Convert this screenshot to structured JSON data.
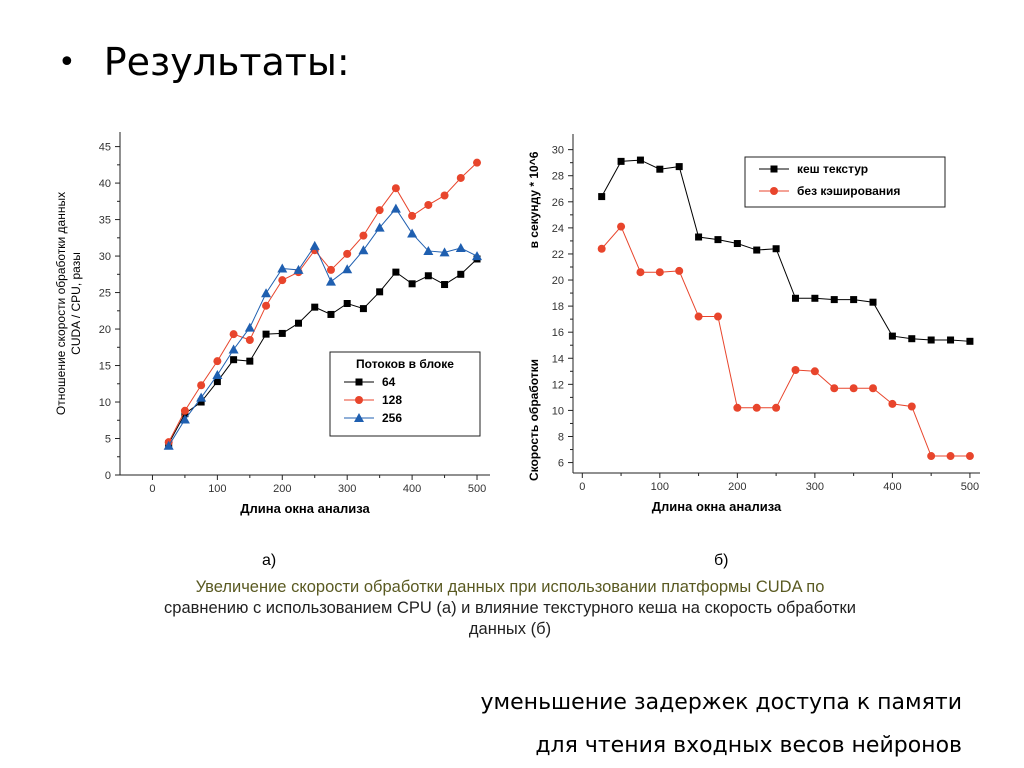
{
  "slide": {
    "bullet": "•",
    "title": "Результаты:",
    "label_a": "а)",
    "label_b": "б)",
    "caption_line1": "Увеличение скорости обработки данных при использовании платформы CUDA по",
    "caption_line2": "сравнению с использованием CPU (а) и влияние текстурного кеша на скорость обработки",
    "caption_line3": "данных (б)",
    "footer_line1": "уменьшение задержек доступа к памяти",
    "footer_line2": "для чтения входных весов нейронов"
  },
  "chart_data": [
    {
      "type": "line",
      "xlabel": "Длина окна анализа",
      "ylabel_line1": "Отношение скорости обработки данных",
      "ylabel_line2": "CUDA / CPU, разы",
      "xlim": [
        -50,
        520
      ],
      "ylim": [
        0,
        47
      ],
      "xticks": [
        0,
        100,
        200,
        300,
        400,
        500
      ],
      "yticks": [
        0,
        5,
        10,
        15,
        20,
        25,
        30,
        35,
        40,
        45
      ],
      "legend_title": "Потоков в блоке",
      "legend_position": "lower-right",
      "x": [
        25,
        50,
        75,
        100,
        125,
        150,
        175,
        200,
        225,
        250,
        275,
        300,
        325,
        350,
        375,
        400,
        425,
        450,
        475,
        500
      ],
      "series": [
        {
          "name": "64",
          "color": "#000000",
          "marker": "square",
          "values": [
            4.3,
            8.4,
            10.0,
            12.8,
            15.8,
            15.6,
            19.3,
            19.4,
            20.8,
            23.0,
            22.0,
            23.5,
            22.8,
            25.1,
            27.8,
            26.2,
            27.3,
            26.1,
            27.5,
            29.6
          ]
        },
        {
          "name": "128",
          "color": "#e8452c",
          "marker": "circle",
          "values": [
            4.5,
            8.8,
            12.3,
            15.6,
            19.3,
            18.5,
            23.2,
            26.7,
            27.8,
            30.8,
            28.1,
            30.3,
            32.8,
            36.3,
            39.3,
            35.5,
            37.0,
            38.3,
            40.7,
            42.8
          ]
        },
        {
          "name": "256",
          "color": "#1f5fb0",
          "marker": "triangle",
          "values": [
            4.0,
            7.6,
            10.6,
            13.7,
            17.2,
            20.2,
            24.9,
            28.3,
            28.1,
            31.4,
            26.5,
            28.2,
            30.8,
            33.9,
            36.5,
            33.1,
            30.7,
            30.5,
            31.1,
            30.0
          ]
        }
      ]
    },
    {
      "type": "line",
      "xlabel": "Длина окна анализа",
      "ylabel_line1": "Скорость обработки",
      "ylabel_line2": "в секунду * 10^6",
      "xlim": [
        -12,
        513
      ],
      "ylim": [
        5.2,
        31.2
      ],
      "xticks": [
        0,
        100,
        200,
        300,
        400,
        500
      ],
      "yticks": [
        6,
        8,
        10,
        12,
        14,
        16,
        18,
        20,
        22,
        24,
        26,
        28,
        30
      ],
      "legend_position": "top-right",
      "x": [
        25,
        50,
        75,
        100,
        125,
        150,
        175,
        200,
        225,
        250,
        275,
        300,
        325,
        350,
        375,
        400,
        425,
        450,
        475,
        500
      ],
      "series": [
        {
          "name": "кеш текстур",
          "color": "#000000",
          "marker": "square",
          "values": [
            26.4,
            29.1,
            29.2,
            28.5,
            28.7,
            23.3,
            23.1,
            22.8,
            22.3,
            22.4,
            18.6,
            18.6,
            18.5,
            18.5,
            18.3,
            15.7,
            15.5,
            15.4,
            15.4,
            15.3
          ]
        },
        {
          "name": "без кэширования",
          "color": "#e8452c",
          "marker": "circle",
          "values": [
            22.4,
            24.1,
            20.6,
            20.6,
            20.7,
            17.2,
            17.2,
            10.2,
            10.2,
            10.2,
            13.1,
            13.0,
            11.7,
            11.7,
            11.7,
            10.5,
            10.3,
            6.5,
            6.5,
            6.5
          ]
        }
      ]
    }
  ]
}
